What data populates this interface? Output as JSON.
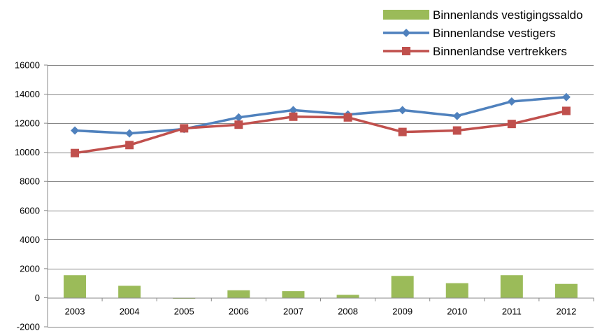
{
  "chart_data": {
    "type": "bar",
    "categories": [
      "2003",
      "2004",
      "2005",
      "2006",
      "2007",
      "2008",
      "2009",
      "2010",
      "2011",
      "2012"
    ],
    "series": [
      {
        "name": "Binnenlands vestigingssaldo",
        "type": "bar",
        "color": "#9BBB59",
        "values": [
          1550,
          820,
          -70,
          510,
          450,
          200,
          1500,
          1000,
          1550,
          950
        ]
      },
      {
        "name": "Binnenlandse vestigers",
        "type": "line",
        "marker": "diamond",
        "color": "#4F81BD",
        "values": [
          11500,
          11300,
          11600,
          12400,
          12900,
          12600,
          12900,
          12500,
          13500,
          13800
        ]
      },
      {
        "name": "Binnenlandse vertrekkers",
        "type": "line",
        "marker": "square",
        "color": "#C0504D",
        "values": [
          9950,
          10500,
          11650,
          11900,
          12450,
          12400,
          11400,
          11500,
          11950,
          12850
        ]
      }
    ],
    "yticks": [
      -2000,
      0,
      2000,
      4000,
      6000,
      8000,
      10000,
      12000,
      14000,
      16000
    ],
    "ylim": [
      -2000,
      16000
    ],
    "title": "",
    "xlabel": "",
    "ylabel": "",
    "grid": true,
    "legend": "top-right"
  }
}
